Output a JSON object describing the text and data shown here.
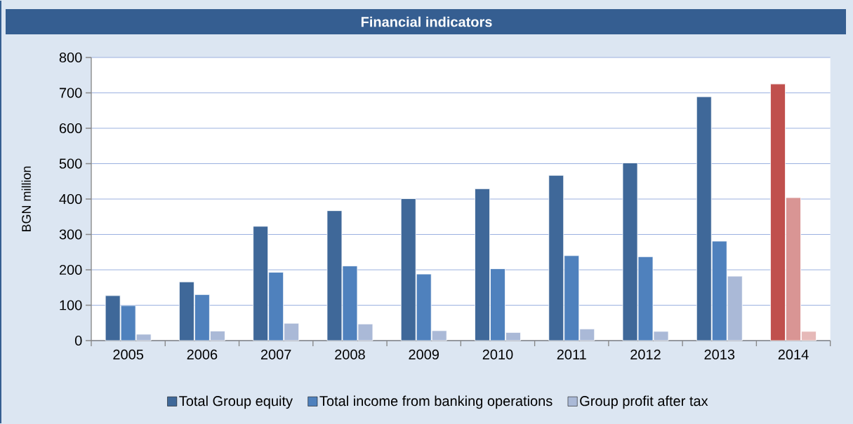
{
  "chart_data": {
    "type": "bar",
    "title": "Financial indicators",
    "ylabel": "BGN million",
    "categories": [
      "2005",
      "2006",
      "2007",
      "2008",
      "2009",
      "2010",
      "2011",
      "2012",
      "2013",
      "2014"
    ],
    "series": [
      {
        "name": "Total Group equity",
        "color": "#3f6899",
        "colors": [
          "#3f6899",
          "#3f6899",
          "#3f6899",
          "#3f6899",
          "#3f6899",
          "#3f6899",
          "#3f6899",
          "#3f6899",
          "#3f6899",
          "#c0504d"
        ],
        "values": [
          127,
          166,
          323,
          367,
          401,
          429,
          467,
          502,
          689,
          725
        ]
      },
      {
        "name": "Total income from banking operations",
        "color": "#4f81bd",
        "colors": [
          "#4f81bd",
          "#4f81bd",
          "#4f81bd",
          "#4f81bd",
          "#4f81bd",
          "#4f81bd",
          "#4f81bd",
          "#4f81bd",
          "#4f81bd",
          "#d99594"
        ],
        "values": [
          99,
          130,
          193,
          211,
          188,
          203,
          240,
          237,
          281,
          404
        ]
      },
      {
        "name": "Group profit after tax",
        "color": "#aab9d7",
        "colors": [
          "#aab9d7",
          "#aab9d7",
          "#aab9d7",
          "#aab9d7",
          "#aab9d7",
          "#aab9d7",
          "#aab9d7",
          "#aab9d7",
          "#aab9d7",
          "#e6b9b8"
        ],
        "values": [
          18,
          27,
          49,
          47,
          28,
          23,
          33,
          26,
          182,
          26
        ]
      }
    ],
    "ylim": [
      0,
      800
    ],
    "yticks": [
      0,
      100,
      200,
      300,
      400,
      500,
      600,
      700,
      800
    ],
    "grid": "y",
    "legend": "bottom"
  }
}
